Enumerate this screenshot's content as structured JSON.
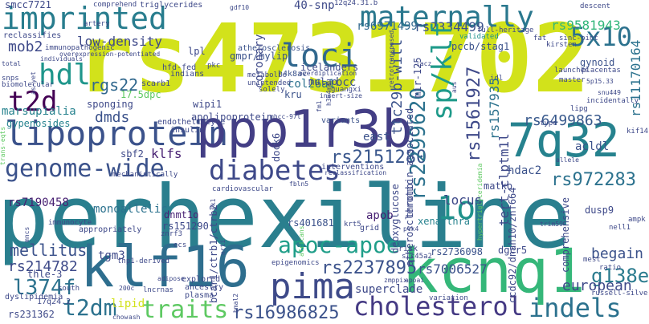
{
  "words": {
    "perhexiline": "perhexiline",
    "rs4731702": "rs4731702",
    "lipoprotein": "lipoprotein",
    "ppp1r3b": "ppp1r3b",
    "klf16": "klf16",
    "kcnq1": "kcnq1",
    "imprinted": "imprinted",
    "maternally": "maternally",
    "diabetes": "diabetes",
    "cholesterol": "cholesterol",
    "genome_wide": "genome-wide",
    "q7q32": "7q32",
    "apoc_apoe": "apoc-apoe",
    "pima": "pima",
    "loci": "loci",
    "hdl": "hdl",
    "t2d": "t2d",
    "sp_klf": "sp/klf",
    "t2dm": "t2dm",
    "traits": "traits",
    "indels": "indels",
    "l374f": "l374f",
    "x5x10": "5x10",
    "rs2237895": "rs2237895",
    "rs16986825": "rs16986825",
    "rs2151280": "rs2151280",
    "rs972283": "rs972283",
    "rs6499863": "rs6499863",
    "rs2299620": "rs2299620",
    "rs7006527": "rs7006527",
    "g138e": "g138e",
    "rs214782": "rs214782",
    "mellitus": "mellitus",
    "rs2334499": "rs2334499",
    "rs6971499": "rs6971499",
    "rs9581943": "rs9581943",
    "low_density": "low-density",
    "mob2": "mob2",
    "rgs22": "rgs22",
    "dmds": "dmds",
    "klfs": "klfs",
    "rs7190458": "rs7190458",
    "monoallelic": "monoallelic",
    "lo": "1o",
    "rs1561927": "rs1561927",
    "rs157935": "rs157935",
    "aclsm1": "tert-clptm1l",
    "acldl": "acldl",
    "european": "european",
    "begain": "begain",
    "locus": "locus",
    "hdac2": "hdac2",
    "xenarthra": "xenarthra",
    "apob": "apob",
    "bcc": "bcc",
    "col26a1": "col26a1",
    "icelanders": "icelanders",
    "coronary": "coronary",
    "east": "east",
    "lipid": "lipid",
    "tgm3": "tgm3",
    "dnmt1o": "dnmt1o",
    "rs151290": "rs151290",
    "rs401681": "rs401681",
    "superclade": "superclade",
    "thle3": "thle-3",
    "rs231362": "rs231362",
    "n40snp": "40-snp",
    "dusp9": "dusp9",
    "gynoid": "gynoid",
    "rs11170164": "rs11170164",
    "dock6": "dock6",
    "deoxyglucose": "deoxyglucose",
    "matko": "matko",
    "kru": "kru",
    "mulao": "mulao",
    "h4k8ac": "h4k8ac",
    "gmpr_mylip": "gmpr/mylip",
    "pccb_stag1": "pccb/stag1",
    "sponging": "sponging",
    "wipi1": "wipi1",
    "apolipoprotein": "apolipoprotein",
    "marsupialia": "marsupialia",
    "sbf2": "sbf2",
    "smcc7721": "smcc7721",
    "comprehensive": "comprehensive",
    "rs2736098": "rs2736098",
    "dgcr5": "dgcr5",
    "thrombin": "thrombin-associated",
    "ttc29b": "ttc29b-witl",
    "atherosclerotic": "atherosclerotic",
    "mir125": "mir-125",
    "atherosclerosis": "atherosclerosis",
    "hfd": "hfd-fed",
    "scarb1": "scarb1",
    "lpl": "lpl",
    "gypenosides": "gypenosides",
    "endotheliocyte": "endotheliocyte",
    "insulin": "insulin",
    "immunocyte": "immunocyte",
    "dyslipidemia": "dyslipidemia",
    "variants": "variants",
    "interventions": "interventions",
    "epigenomics": "epigenomics",
    "explored": "explored",
    "ancestry": "ancestry",
    "plasma": "plasma",
    "lncrnas": "lncrnas",
    "thp1": "thp1-derived",
    "appropriately": "appropriately",
    "ecs": "ecs",
    "znrf3": "znrf3",
    "variation": "variation",
    "risk": "risk",
    "grid": "grid",
    "krt5": "krt5",
    "slc45a2": "slc45a2",
    "bcar1": "bcar1/ctrb1/ctrb2",
    "q17q24": "17q24.2",
    "south": "south",
    "ccdc92": "ccdc92/dnah10/znf664",
    "mest": "mest",
    "russell": "russell-silver",
    "nell1": "nell1",
    "ampk": "ampk",
    "ratio": "ratio",
    "trim59": "trim59",
    "kif14": "kif14",
    "type": "type",
    "lipg": "lipg",
    "snu449": "snu449",
    "incidentally": "incidentally",
    "master": "master",
    "p5p15": "5p15.33",
    "launches": "launches",
    "placentas": "placentas",
    "sinc": "sinc-pint",
    "kirsten": "kirsten",
    "fat": "fat",
    "descent": "descent",
    "full_heritage": "full-heritage",
    "validated": "validated",
    "q12q24": "12q24.31.b",
    "triglycerides": "triglycerides",
    "comprehend": "comprehend",
    "reclassifies": "reclassifies",
    "artery": "artery",
    "immunopathogenic": "immunopathogenic",
    "overexpression": "overexpression-potentiated",
    "individuals": "individuals",
    "total": "total",
    "snps": "snps",
    "biomolecular": "biomolecular",
    "as_yet": "as-yet",
    "indians": "indians",
    "pkc": "pkc",
    "metabolic": "metabolic",
    "unintended": "unintended",
    "solely": "solely",
    "mechanistically": "mechanistically",
    "cardiovascular": "cardiovascular",
    "guangxi": "guangxi",
    "insert_size": "insert-size",
    "everdiplication": "overdiplication",
    "aus": "aus",
    "idl": "idl",
    "lacz": "lacz",
    "mhcc": "mhcc-97l",
    "q17_5dpc": "17.5dpc",
    "c200": "200c",
    "nrti": "nrti",
    "zmppix": "zmppix",
    "apoai": "apoai",
    "fbln5": "fbln5",
    "sk1": "sk1",
    "bmal2": "bmal2",
    "chow": "chow",
    "ash": "ash",
    "adipose": "adipose",
    "mncs": "mncs",
    "plk4": "plk4",
    "allele": "allele",
    "hypertriglyceridemia": "hypertriglyceridemia",
    "africans": "africans",
    "gdf10": "gdf10",
    "trans_eqts": "trans-eqts",
    "h3k4me": "h3k4me",
    "fm1": "fm1",
    "retrotransposed": "retrotransposed",
    "reclassification": "reclassification"
  }
}
